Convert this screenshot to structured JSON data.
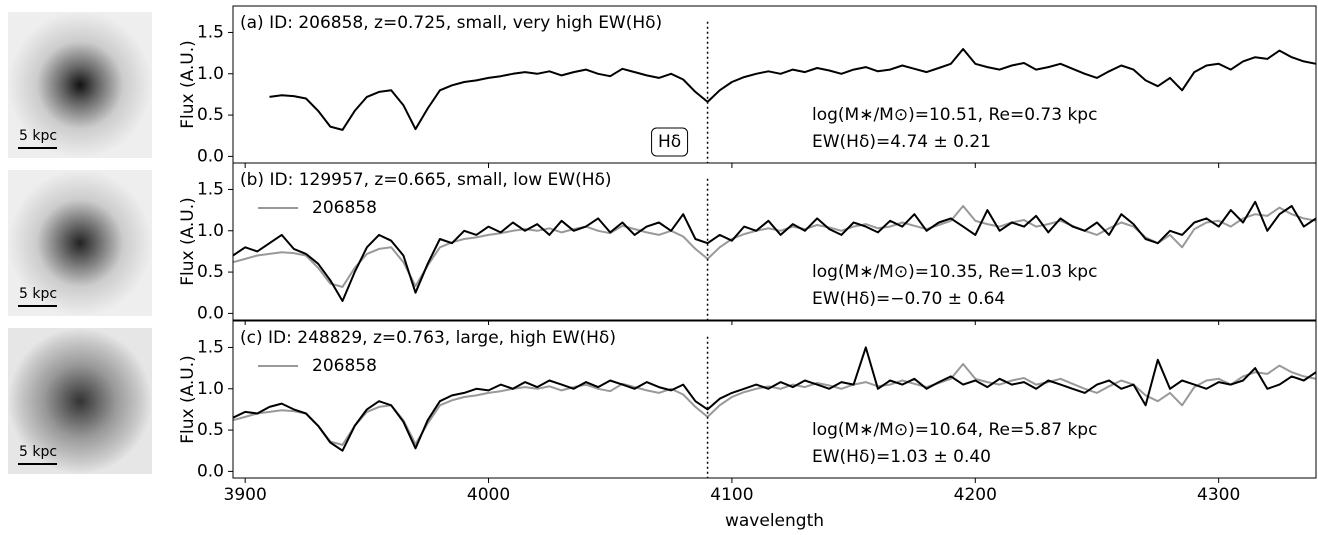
{
  "thumbnails": [
    {
      "scale_label": "5 kpc"
    },
    {
      "scale_label": "5 kpc"
    },
    {
      "scale_label": "5 kpc"
    }
  ],
  "chart_data": [
    {
      "type": "line",
      "title": "(a) ID: 206858, z=0.725, small, very high EW(Hδ)",
      "ylabel": "Flux (A.U.)",
      "annotations": [
        "log(M∗/M⊙)=10.51, Re=0.73 kpc",
        "EW(Hδ)=4.74 ± 0.21"
      ],
      "line_label": "Hδ",
      "vline": 4090,
      "xlim": [
        3895,
        4340
      ],
      "xticks": [
        3900,
        4000,
        4100,
        4200,
        4300
      ],
      "ylim": [
        -0.08,
        1.82
      ],
      "yticks": [
        0.0,
        0.5,
        1.0,
        1.5
      ],
      "x": [
        3895,
        3900,
        3905,
        3910,
        3915,
        3920,
        3925,
        3930,
        3935,
        3940,
        3945,
        3950,
        3955,
        3960,
        3965,
        3970,
        3975,
        3980,
        3985,
        3990,
        3995,
        4000,
        4005,
        4010,
        4015,
        4020,
        4025,
        4030,
        4035,
        4040,
        4045,
        4050,
        4055,
        4060,
        4065,
        4070,
        4075,
        4080,
        4085,
        4090,
        4095,
        4100,
        4105,
        4110,
        4115,
        4120,
        4125,
        4130,
        4135,
        4140,
        4145,
        4150,
        4155,
        4160,
        4165,
        4170,
        4175,
        4180,
        4185,
        4190,
        4195,
        4200,
        4205,
        4210,
        4215,
        4220,
        4225,
        4230,
        4235,
        4240,
        4245,
        4250,
        4255,
        4260,
        4265,
        4270,
        4275,
        4280,
        4285,
        4290,
        4295,
        4300,
        4305,
        4310,
        4315,
        4320,
        4325,
        4330,
        4335,
        4340
      ],
      "series": [
        {
          "color": "#000000",
          "values": [
            null,
            null,
            null,
            0.72,
            0.74,
            0.73,
            0.7,
            0.55,
            0.36,
            0.32,
            0.55,
            0.72,
            0.78,
            0.8,
            0.62,
            0.33,
            0.58,
            0.8,
            0.86,
            0.9,
            0.92,
            0.95,
            0.97,
            1.0,
            1.02,
            1.0,
            1.03,
            0.98,
            1.02,
            1.05,
            1.0,
            0.97,
            1.06,
            1.02,
            0.98,
            0.95,
            1.0,
            0.93,
            0.78,
            0.66,
            0.8,
            0.9,
            0.96,
            1.0,
            1.03,
            1.0,
            1.05,
            1.02,
            1.07,
            1.04,
            1.0,
            1.05,
            1.08,
            1.03,
            1.05,
            1.1,
            1.06,
            1.02,
            1.07,
            1.12,
            1.3,
            1.12,
            1.08,
            1.05,
            1.1,
            1.13,
            1.05,
            1.08,
            1.12,
            1.06,
            1.0,
            0.95,
            1.03,
            1.1,
            1.05,
            0.92,
            0.85,
            0.95,
            0.8,
            1.02,
            1.1,
            1.12,
            1.05,
            1.15,
            1.2,
            1.18,
            1.28,
            1.2,
            1.15,
            1.12
          ]
        }
      ]
    },
    {
      "type": "line",
      "title": "(b) ID: 129957, z=0.665, small, low EW(Hδ)",
      "ylabel": "Flux (A.U.)",
      "annotations": [
        "log(M∗/M⊙)=10.35, Re=1.03 kpc",
        "EW(Hδ)=−0.70 ± 0.64"
      ],
      "vline": 4090,
      "xlim": [
        3895,
        4340
      ],
      "xticks": [
        3900,
        4000,
        4100,
        4200,
        4300
      ],
      "ylim": [
        -0.08,
        1.82
      ],
      "yticks": [
        0.0,
        0.5,
        1.0,
        1.5
      ],
      "x": [
        3895,
        3900,
        3905,
        3910,
        3915,
        3920,
        3925,
        3930,
        3935,
        3940,
        3945,
        3950,
        3955,
        3960,
        3965,
        3970,
        3975,
        3980,
        3985,
        3990,
        3995,
        4000,
        4005,
        4010,
        4015,
        4020,
        4025,
        4030,
        4035,
        4040,
        4045,
        4050,
        4055,
        4060,
        4065,
        4070,
        4075,
        4080,
        4085,
        4090,
        4095,
        4100,
        4105,
        4110,
        4115,
        4120,
        4125,
        4130,
        4135,
        4140,
        4145,
        4150,
        4155,
        4160,
        4165,
        4170,
        4175,
        4180,
        4185,
        4190,
        4195,
        4200,
        4205,
        4210,
        4215,
        4220,
        4225,
        4230,
        4235,
        4240,
        4245,
        4250,
        4255,
        4260,
        4265,
        4270,
        4275,
        4280,
        4285,
        4290,
        4295,
        4300,
        4305,
        4310,
        4315,
        4320,
        4325,
        4330,
        4335,
        4340
      ],
      "series": [
        {
          "color": "#000000",
          "values": [
            0.7,
            0.8,
            0.75,
            0.85,
            0.95,
            0.78,
            0.72,
            0.6,
            0.4,
            0.15,
            0.5,
            0.8,
            0.95,
            0.88,
            0.7,
            0.25,
            0.6,
            0.9,
            0.85,
            1.0,
            0.95,
            1.05,
            0.98,
            1.1,
            1.0,
            1.08,
            0.95,
            1.12,
            1.0,
            1.05,
            1.15,
            0.98,
            1.1,
            0.95,
            1.05,
            1.1,
            1.0,
            1.2,
            0.9,
            0.85,
            0.95,
            0.88,
            1.05,
            1.0,
            1.12,
            0.95,
            1.08,
            1.0,
            1.15,
            1.02,
            0.95,
            1.1,
            1.05,
            0.98,
            1.12,
            1.05,
            1.2,
            1.0,
            1.1,
            1.15,
            1.05,
            0.95,
            1.25,
            1.0,
            1.1,
            1.05,
            1.18,
            0.98,
            1.15,
            1.05,
            1.0,
            1.1,
            0.95,
            1.2,
            1.08,
            0.9,
            0.85,
            1.0,
            0.95,
            1.1,
            1.15,
            1.05,
            1.25,
            1.1,
            1.35,
            1.0,
            1.2,
            1.3,
            1.05,
            1.15
          ]
        },
        {
          "name": "206858",
          "color": "#999999",
          "values": [
            0.62,
            0.66,
            0.7,
            0.72,
            0.74,
            0.73,
            0.7,
            0.55,
            0.36,
            0.32,
            0.55,
            0.72,
            0.78,
            0.8,
            0.62,
            0.33,
            0.58,
            0.8,
            0.86,
            0.9,
            0.92,
            0.95,
            0.97,
            1.0,
            1.02,
            1.0,
            1.03,
            0.98,
            1.02,
            1.05,
            1.0,
            0.97,
            1.06,
            1.02,
            0.98,
            0.95,
            1.0,
            0.93,
            0.78,
            0.66,
            0.8,
            0.9,
            0.96,
            1.0,
            1.03,
            1.0,
            1.05,
            1.02,
            1.07,
            1.04,
            1.0,
            1.05,
            1.08,
            1.03,
            1.05,
            1.1,
            1.06,
            1.02,
            1.07,
            1.12,
            1.3,
            1.12,
            1.08,
            1.05,
            1.1,
            1.13,
            1.05,
            1.08,
            1.12,
            1.06,
            1.0,
            0.95,
            1.03,
            1.1,
            1.05,
            0.92,
            0.85,
            0.95,
            0.8,
            1.02,
            1.1,
            1.12,
            1.05,
            1.15,
            1.2,
            1.18,
            1.28,
            1.2,
            1.15,
            1.12
          ]
        }
      ]
    },
    {
      "type": "line",
      "title": "(c) ID: 248829, z=0.763, large, high EW(Hδ)",
      "ylabel": "Flux (A.U.)",
      "xlabel": "wavelength",
      "annotations": [
        "log(M∗/M⊙)=10.64, Re=5.87 kpc",
        "EW(Hδ)=1.03 ± 0.40"
      ],
      "vline": 4090,
      "xlim": [
        3895,
        4340
      ],
      "xticks": [
        3900,
        4000,
        4100,
        4200,
        4300
      ],
      "ylim": [
        -0.08,
        1.82
      ],
      "yticks": [
        0.0,
        0.5,
        1.0,
        1.5
      ],
      "x": [
        3895,
        3900,
        3905,
        3910,
        3915,
        3920,
        3925,
        3930,
        3935,
        3940,
        3945,
        3950,
        3955,
        3960,
        3965,
        3970,
        3975,
        3980,
        3985,
        3990,
        3995,
        4000,
        4005,
        4010,
        4015,
        4020,
        4025,
        4030,
        4035,
        4040,
        4045,
        4050,
        4055,
        4060,
        4065,
        4070,
        4075,
        4080,
        4085,
        4090,
        4095,
        4100,
        4105,
        4110,
        4115,
        4120,
        4125,
        4130,
        4135,
        4140,
        4145,
        4150,
        4155,
        4160,
        4165,
        4170,
        4175,
        4180,
        4185,
        4190,
        4195,
        4200,
        4205,
        4210,
        4215,
        4220,
        4225,
        4230,
        4235,
        4240,
        4245,
        4250,
        4255,
        4260,
        4265,
        4270,
        4275,
        4280,
        4285,
        4290,
        4295,
        4300,
        4305,
        4310,
        4315,
        4320,
        4325,
        4330,
        4335,
        4340
      ],
      "series": [
        {
          "color": "#000000",
          "values": [
            0.65,
            0.72,
            0.7,
            0.78,
            0.82,
            0.75,
            0.7,
            0.55,
            0.35,
            0.25,
            0.55,
            0.75,
            0.85,
            0.8,
            0.6,
            0.28,
            0.62,
            0.85,
            0.92,
            0.95,
            1.0,
            0.98,
            1.05,
            1.0,
            1.08,
            1.02,
            1.1,
            1.05,
            1.0,
            1.08,
            1.02,
            1.1,
            1.05,
            1.0,
            1.08,
            1.02,
            0.98,
            1.05,
            0.85,
            0.75,
            0.88,
            0.95,
            1.0,
            1.05,
            1.0,
            1.08,
            1.02,
            1.1,
            1.05,
            1.0,
            1.08,
            1.05,
            1.5,
            1.0,
            1.1,
            1.05,
            1.12,
            1.0,
            1.08,
            1.15,
            1.05,
            1.1,
            1.02,
            1.12,
            1.05,
            1.08,
            1.0,
            1.1,
            1.05,
            1.0,
            0.95,
            1.05,
            1.1,
            1.0,
            1.05,
            0.8,
            1.35,
            1.0,
            1.1,
            1.05,
            1.0,
            1.08,
            1.05,
            1.1,
            1.25,
            1.0,
            1.05,
            1.15,
            1.1,
            1.2
          ]
        },
        {
          "name": "206858",
          "color": "#999999",
          "values": [
            0.62,
            0.66,
            0.7,
            0.72,
            0.74,
            0.73,
            0.7,
            0.55,
            0.36,
            0.32,
            0.55,
            0.72,
            0.78,
            0.8,
            0.62,
            0.33,
            0.58,
            0.8,
            0.86,
            0.9,
            0.92,
            0.95,
            0.97,
            1.0,
            1.02,
            1.0,
            1.03,
            0.98,
            1.02,
            1.05,
            1.0,
            0.97,
            1.06,
            1.02,
            0.98,
            0.95,
            1.0,
            0.93,
            0.78,
            0.66,
            0.8,
            0.9,
            0.96,
            1.0,
            1.03,
            1.0,
            1.05,
            1.02,
            1.07,
            1.04,
            1.0,
            1.05,
            1.08,
            1.03,
            1.05,
            1.1,
            1.06,
            1.02,
            1.07,
            1.12,
            1.3,
            1.12,
            1.08,
            1.05,
            1.1,
            1.13,
            1.05,
            1.08,
            1.12,
            1.06,
            1.0,
            0.95,
            1.03,
            1.1,
            1.05,
            0.92,
            0.85,
            0.95,
            0.8,
            1.02,
            1.1,
            1.12,
            1.05,
            1.15,
            1.2,
            1.18,
            1.28,
            1.2,
            1.15,
            1.12
          ]
        }
      ]
    }
  ]
}
